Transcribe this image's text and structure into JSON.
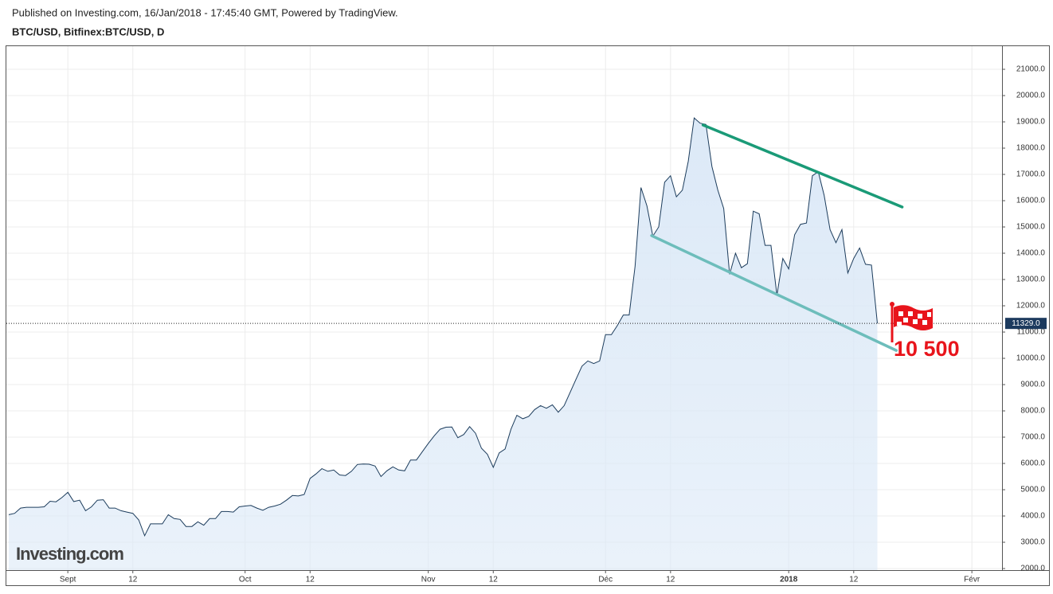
{
  "header": {
    "published": "Published on Investing.com, 16/Jan/2018 - 17:45:40 GMT, Powered by TradingView.",
    "symbol": "BTC/USD, Bitfinex:BTC/USD, D"
  },
  "chart_data": {
    "type": "area",
    "watermark": "Investing.com",
    "color": "#1c3c5c",
    "fill": "#dce9f7",
    "values": [
      4050,
      4100,
      4300,
      4330,
      4330,
      4330,
      4350,
      4560,
      4540,
      4700,
      4900,
      4550,
      4600,
      4200,
      4350,
      4600,
      4620,
      4300,
      4300,
      4200,
      4150,
      4100,
      3850,
      3250,
      3700,
      3700,
      3700,
      4050,
      3900,
      3870,
      3600,
      3600,
      3780,
      3650,
      3900,
      3900,
      4170,
      4170,
      4150,
      4350,
      4380,
      4400,
      4300,
      4220,
      4330,
      4380,
      4450,
      4600,
      4780,
      4760,
      4820,
      5430,
      5600,
      5800,
      5700,
      5750,
      5560,
      5540,
      5700,
      5960,
      5980,
      5970,
      5900,
      5500,
      5720,
      5870,
      5750,
      5720,
      6130,
      6130,
      6450,
      6760,
      7050,
      7300,
      7380,
      7390,
      6980,
      7100,
      7400,
      7150,
      6580,
      6350,
      5850,
      6400,
      6550,
      7300,
      7830,
      7700,
      7790,
      8050,
      8200,
      8100,
      8230,
      7950,
      8200,
      8700,
      9200,
      9700,
      9900,
      9800,
      9900,
      10900,
      10900,
      11250,
      11650,
      11650,
      13500,
      16500,
      15800,
      14650,
      15000,
      16700,
      16950,
      16150,
      16400,
      17500,
      19150,
      18950,
      18900,
      17300,
      16400,
      15700,
      13200,
      14000,
      13450,
      13600,
      15600,
      15500,
      14300,
      14300,
      12400,
      13800,
      13400,
      14700,
      15100,
      15150,
      16950,
      17100,
      16200,
      14900,
      14400,
      14900,
      13250,
      13800,
      14200,
      13580,
      13550,
      11329
    ],
    "xlim": [
      -0.4,
      168.1
    ],
    "xticks": [
      {
        "value": 10,
        "label": "Sept"
      },
      {
        "value": 21,
        "label": "12"
      },
      {
        "value": 40,
        "label": "Oct"
      },
      {
        "value": 51,
        "label": "12"
      },
      {
        "value": 71,
        "label": "Nov"
      },
      {
        "value": 82,
        "label": "12"
      },
      {
        "value": 101,
        "label": "Déc"
      },
      {
        "value": 112,
        "label": "12"
      },
      {
        "value": 132,
        "label": "2018"
      },
      {
        "value": 143,
        "label": "12"
      },
      {
        "value": 163,
        "label": "Févr"
      }
    ],
    "ylim": [
      1940,
      21910
    ],
    "yticks": [
      {
        "value": 2000,
        "label": "2000.0"
      },
      {
        "value": 3000,
        "label": "3000.0"
      },
      {
        "value": 4000,
        "label": "4000.0"
      },
      {
        "value": 5000,
        "label": "5000.0"
      },
      {
        "value": 6000,
        "label": "6000.0"
      },
      {
        "value": 7000,
        "label": "7000.0"
      },
      {
        "value": 8000,
        "label": "8000.0"
      },
      {
        "value": 9000,
        "label": "9000.0"
      },
      {
        "value": 10000,
        "label": "10000.0"
      },
      {
        "value": 11000,
        "label": "11000.0"
      },
      {
        "value": 12000,
        "label": "12000.0"
      },
      {
        "value": 13000,
        "label": "13000.0"
      },
      {
        "value": 14000,
        "label": "14000.0"
      },
      {
        "value": 15000,
        "label": "15000.0"
      },
      {
        "value": 16000,
        "label": "16000.0"
      },
      {
        "value": 17000,
        "label": "17000.0"
      },
      {
        "value": 18000,
        "label": "18000.0"
      },
      {
        "value": 19000,
        "label": "19000.0"
      },
      {
        "value": 20000,
        "label": "20000.0"
      },
      {
        "value": 21000,
        "label": "21000.0"
      }
    ],
    "grid": true,
    "price_line": {
      "value": 11329,
      "label": "11329.0",
      "color": "#1c3a5e"
    },
    "trendlines": [
      {
        "x": [
          117.5,
          151.2
        ],
        "y": [
          18880,
          15760
        ],
        "color": "#1a9a77"
      },
      {
        "x": [
          108.8,
          150.2
        ],
        "y": [
          14670,
          10300
        ],
        "color": "#6dbdbb"
      }
    ],
    "target": {
      "label": "10 500",
      "color": "#e8141b"
    }
  }
}
